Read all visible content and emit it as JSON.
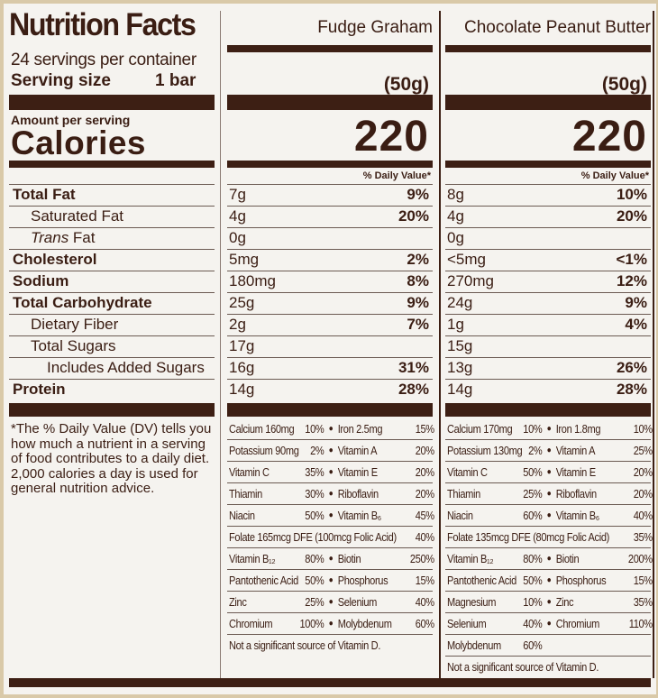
{
  "label": {
    "title": "Nutrition Facts",
    "servings_per_container": "24 servings per container",
    "serving_size_label": "Serving size",
    "serving_size_value": "1 bar",
    "amount_per_serving": "Amount per serving",
    "calories_label": "Calories",
    "footnote": "*The % Daily Value (DV) tells you how much a nutrient in a serving of food contributes to a daily diet. 2,000 calories a day is used for general nutrition advice.",
    "nutrients": [
      {
        "label": "Total Fat",
        "bold": true,
        "indent": 0
      },
      {
        "label": "Saturated Fat",
        "bold": false,
        "indent": 1
      },
      {
        "label": "Trans Fat",
        "bold": false,
        "indent": 1,
        "italic_word": "Trans"
      },
      {
        "label": "Cholesterol",
        "bold": true,
        "indent": 0
      },
      {
        "label": "Sodium",
        "bold": true,
        "indent": 0
      },
      {
        "label": "Total Carbohydrate",
        "bold": true,
        "indent": 0
      },
      {
        "label": "Dietary Fiber",
        "bold": false,
        "indent": 1
      },
      {
        "label": "Total Sugars",
        "bold": false,
        "indent": 1
      },
      {
        "label": "Includes Added Sugars",
        "bold": false,
        "indent": 2
      },
      {
        "label": "Protein",
        "bold": true,
        "indent": 0
      }
    ]
  },
  "columns": [
    {
      "name": "Fudge Graham",
      "serving_grams": "(50g)",
      "calories": "220",
      "daily_value_header": "% Daily Value*",
      "values": [
        {
          "amount": "7g",
          "dv": "9%"
        },
        {
          "amount": "4g",
          "dv": "20%"
        },
        {
          "amount": "0g",
          "dv": ""
        },
        {
          "amount": "5mg",
          "dv": "2%"
        },
        {
          "amount": "180mg",
          "dv": "8%"
        },
        {
          "amount": "25g",
          "dv": "9%"
        },
        {
          "amount": "2g",
          "dv": "7%"
        },
        {
          "amount": "17g",
          "dv": ""
        },
        {
          "amount": "16g",
          "dv": "31%"
        },
        {
          "amount": "14g",
          "dv": "28%"
        }
      ],
      "vitamins": [
        {
          "left": "Calcium 160mg",
          "left_dv": "10%",
          "right": "Iron 2.5mg",
          "right_dv": "15%"
        },
        {
          "left": "Potassium 90mg",
          "left_dv": "2%",
          "right": "Vitamin A",
          "right_dv": "20%"
        },
        {
          "left": "Vitamin C",
          "left_dv": "35%",
          "right": "Vitamin E",
          "right_dv": "20%"
        },
        {
          "left": "Thiamin",
          "left_dv": "30%",
          "right": "Riboflavin",
          "right_dv": "20%"
        },
        {
          "left": "Niacin",
          "left_dv": "50%",
          "right": "Vitamin B₆",
          "right_dv": "45%"
        },
        {
          "full": "Folate 165mcg DFE (100mcg Folic Acid)",
          "right_dv": "40%"
        },
        {
          "left": "Vitamin B₁₂",
          "left_dv": "80%",
          "right": "Biotin",
          "right_dv": "250%"
        },
        {
          "left": "Pantothenic Acid",
          "left_dv": "50%",
          "right": "Phosphorus",
          "right_dv": "15%"
        },
        {
          "left": "Zinc",
          "left_dv": "25%",
          "right": "Selenium",
          "right_dv": "40%"
        },
        {
          "left": "Chromium",
          "left_dv": "100%",
          "right": "Molybdenum",
          "right_dv": "60%"
        }
      ],
      "note": "Not a significant source of Vitamin D."
    },
    {
      "name": "Chocolate Peanut Butter",
      "serving_grams": "(50g)",
      "calories": "220",
      "daily_value_header": "% Daily Value*",
      "values": [
        {
          "amount": "8g",
          "dv": "10%"
        },
        {
          "amount": "4g",
          "dv": "20%"
        },
        {
          "amount": "0g",
          "dv": ""
        },
        {
          "amount": "<5mg",
          "dv": "<1%"
        },
        {
          "amount": "270mg",
          "dv": "12%"
        },
        {
          "amount": "24g",
          "dv": "9%"
        },
        {
          "amount": "1g",
          "dv": "4%"
        },
        {
          "amount": "15g",
          "dv": ""
        },
        {
          "amount": "13g",
          "dv": "26%"
        },
        {
          "amount": "14g",
          "dv": "28%"
        }
      ],
      "vitamins": [
        {
          "left": "Calcium 170mg",
          "left_dv": "10%",
          "right": "Iron 1.8mg",
          "right_dv": "10%"
        },
        {
          "left": "Potassium 130mg",
          "left_dv": "2%",
          "right": "Vitamin A",
          "right_dv": "25%"
        },
        {
          "left": "Vitamin C",
          "left_dv": "50%",
          "right": "Vitamin E",
          "right_dv": "20%"
        },
        {
          "left": "Thiamin",
          "left_dv": "25%",
          "right": "Riboflavin",
          "right_dv": "20%"
        },
        {
          "left": "Niacin",
          "left_dv": "60%",
          "right": "Vitamin B₆",
          "right_dv": "40%"
        },
        {
          "full": "Folate 135mcg DFE (80mcg Folic Acid)",
          "right_dv": "35%"
        },
        {
          "left": "Vitamin B₁₂",
          "left_dv": "80%",
          "right": "Biotin",
          "right_dv": "200%"
        },
        {
          "left": "Pantothenic Acid",
          "left_dv": "50%",
          "right": "Phosphorus",
          "right_dv": "15%"
        },
        {
          "left": "Magnesium",
          "left_dv": "10%",
          "right": "Zinc",
          "right_dv": "35%"
        },
        {
          "left": "Selenium",
          "left_dv": "40%",
          "right": "Chromium",
          "right_dv": "110%"
        },
        {
          "left": "Molybdenum",
          "left_dv": "60%"
        }
      ],
      "note": "Not a significant source of Vitamin D."
    }
  ],
  "colors": {
    "ink": "#3d1f14",
    "paper": "#f5f3ef"
  }
}
